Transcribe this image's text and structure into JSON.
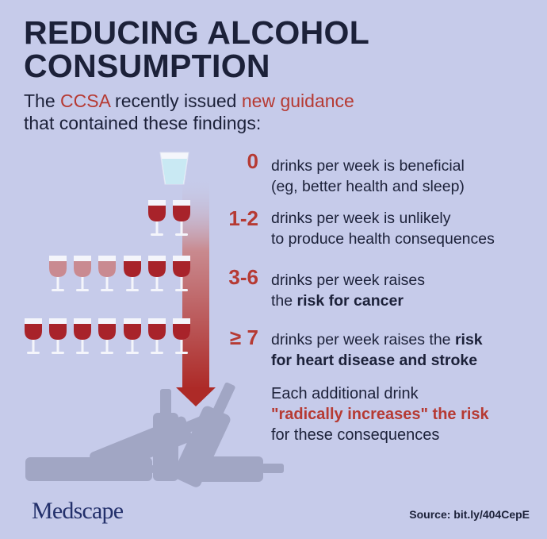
{
  "header": {
    "title_line1": "REDUCING ALCOHOL",
    "title_line2": "CONSUMPTION",
    "subtitle_pre": "The ",
    "subtitle_org": "CCSA",
    "subtitle_mid": " recently issued ",
    "subtitle_guidance": "new guidance",
    "subtitle_line2": "that contained these findings:"
  },
  "findings": [
    {
      "count": "0",
      "line1": "drinks per week is beneficial",
      "line2": "(eg, better health and sleep)"
    },
    {
      "count": "1-2",
      "line1": "drinks per week is unlikely",
      "line2": "to produce health consequences"
    },
    {
      "count": "3-6",
      "line1": "drinks per week raises",
      "line2_pre": "the ",
      "line2_bold": "risk for cancer"
    },
    {
      "count": "≥ 7",
      "line1_pre": "drinks per week raises the ",
      "line1_bold": "risk",
      "line2_bold": "for heart disease and stroke"
    }
  ],
  "closing": {
    "line1": "Each additional drink",
    "line2": "\"radically increases\" the risk",
    "line3": "for these consequences"
  },
  "brand": {
    "logo_pre": "Med",
    "logo_post": "scape"
  },
  "source": "Source: bit.ly/404CepE",
  "colors": {
    "background": "#c6cbea",
    "accent_red": "#b63a33",
    "dark": "#1c2139",
    "wine": "#a8232a",
    "wine_light": "#c98a91"
  }
}
